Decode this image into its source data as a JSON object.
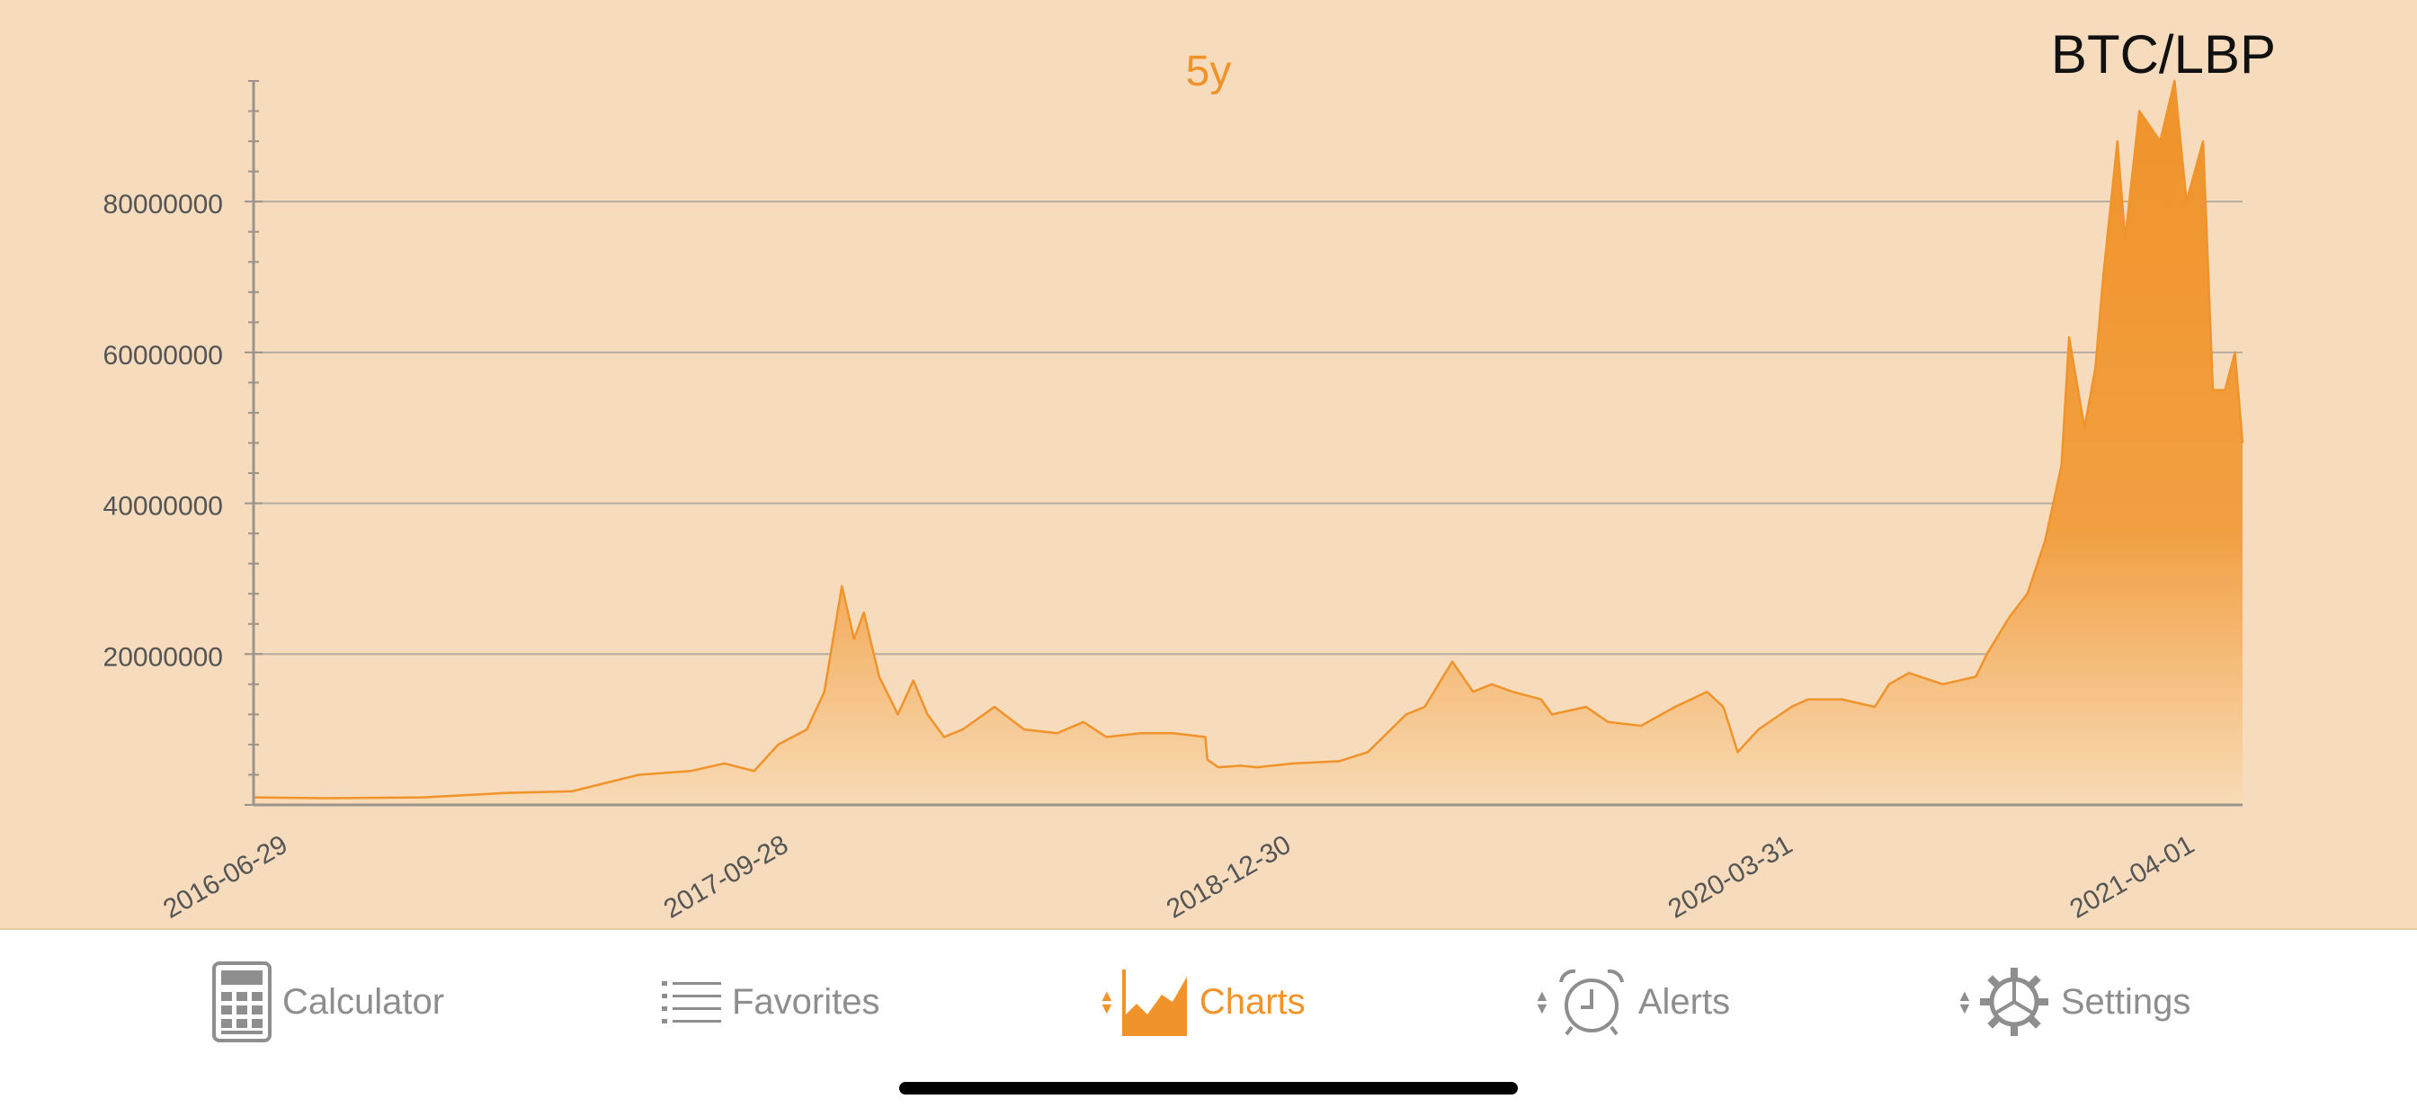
{
  "chart_data": {
    "type": "area",
    "title": "BTC/LBP",
    "period": "5y",
    "xlabel": "",
    "ylabel": "",
    "ylim": [
      0,
      96000000
    ],
    "yticks": [
      20000000,
      40000000,
      60000000,
      80000000
    ],
    "ytick_labels": [
      "20000000",
      "40000000",
      "60000000",
      "80000000"
    ],
    "xtick_labels": [
      "2016-06-29",
      "2017-09-28",
      "2018-12-30",
      "2020-03-31",
      "2021-04-01"
    ],
    "x_range": [
      "2016-06-29",
      "2021-06-15"
    ],
    "series": [
      {
        "name": "BTC/LBP",
        "x": [
          "2016-06-29",
          "2016-09-01",
          "2016-12-01",
          "2017-02-15",
          "2017-04-15",
          "2017-06-15",
          "2017-08-01",
          "2017-09-01",
          "2017-09-28",
          "2017-10-20",
          "2017-11-15",
          "2017-12-01",
          "2017-12-17",
          "2017-12-28",
          "2018-01-06",
          "2018-01-20",
          "2018-02-06",
          "2018-02-20",
          "2018-03-05",
          "2018-03-20",
          "2018-04-06",
          "2018-05-05",
          "2018-06-01",
          "2018-07-01",
          "2018-07-25",
          "2018-08-15",
          "2018-09-15",
          "2018-10-15",
          "2018-11-13",
          "2018-11-15",
          "2018-11-25",
          "2018-12-15",
          "2018-12-30",
          "2019-02-01",
          "2019-03-15",
          "2019-04-10",
          "2019-05-15",
          "2019-06-01",
          "2019-06-26",
          "2019-07-15",
          "2019-08-01",
          "2019-08-20",
          "2019-09-15",
          "2019-09-25",
          "2019-10-26",
          "2019-11-15",
          "2019-12-15",
          "2020-01-15",
          "2020-02-13",
          "2020-02-28",
          "2020-03-12",
          "2020-03-31",
          "2020-04-30",
          "2020-05-15",
          "2020-06-15",
          "2020-07-15",
          "2020-07-28",
          "2020-08-15",
          "2020-09-15",
          "2020-10-15",
          "2020-10-25",
          "2020-11-15",
          "2020-12-01",
          "2020-12-17",
          "2021-01-01",
          "2021-01-08",
          "2021-01-22",
          "2021-02-01",
          "2021-02-08",
          "2021-02-21",
          "2021-02-28",
          "2021-03-13",
          "2021-04-01",
          "2021-04-14",
          "2021-04-25",
          "2021-05-10",
          "2021-05-19",
          "2021-05-30",
          "2021-06-08",
          "2021-06-15"
        ],
        "values": [
          1000000,
          900000,
          1000000,
          1600000,
          1800000,
          4000000,
          4500000,
          5500000,
          4500000,
          8000000,
          10000000,
          15000000,
          29000000,
          22000000,
          25500000,
          17000000,
          12000000,
          16500000,
          12000000,
          9000000,
          10000000,
          13000000,
          10000000,
          9500000,
          11000000,
          9000000,
          9500000,
          9500000,
          9000000,
          6000000,
          5000000,
          5200000,
          5000000,
          5500000,
          5800000,
          7000000,
          12000000,
          13000000,
          19000000,
          15000000,
          16000000,
          15000000,
          14000000,
          12000000,
          13000000,
          11000000,
          10500000,
          13000000,
          15000000,
          13000000,
          7000000,
          10000000,
          13000000,
          14000000,
          14000000,
          13000000,
          16000000,
          17500000,
          16000000,
          17000000,
          20000000,
          25000000,
          28000000,
          35000000,
          45000000,
          62000000,
          50000000,
          58000000,
          70000000,
          88000000,
          75000000,
          92000000,
          88000000,
          96000000,
          80000000,
          88000000,
          55000000,
          55000000,
          60000000,
          48000000
        ]
      }
    ]
  },
  "tabbar": {
    "calculator_label": "Calculator",
    "favorites_label": "Favorites",
    "charts_label": "Charts",
    "alerts_label": "Alerts",
    "settings_label": "Settings"
  },
  "colors": {
    "accent": "#f0932a",
    "chart_bg": "#f6dcbc",
    "inactive": "#8e8e8e"
  }
}
